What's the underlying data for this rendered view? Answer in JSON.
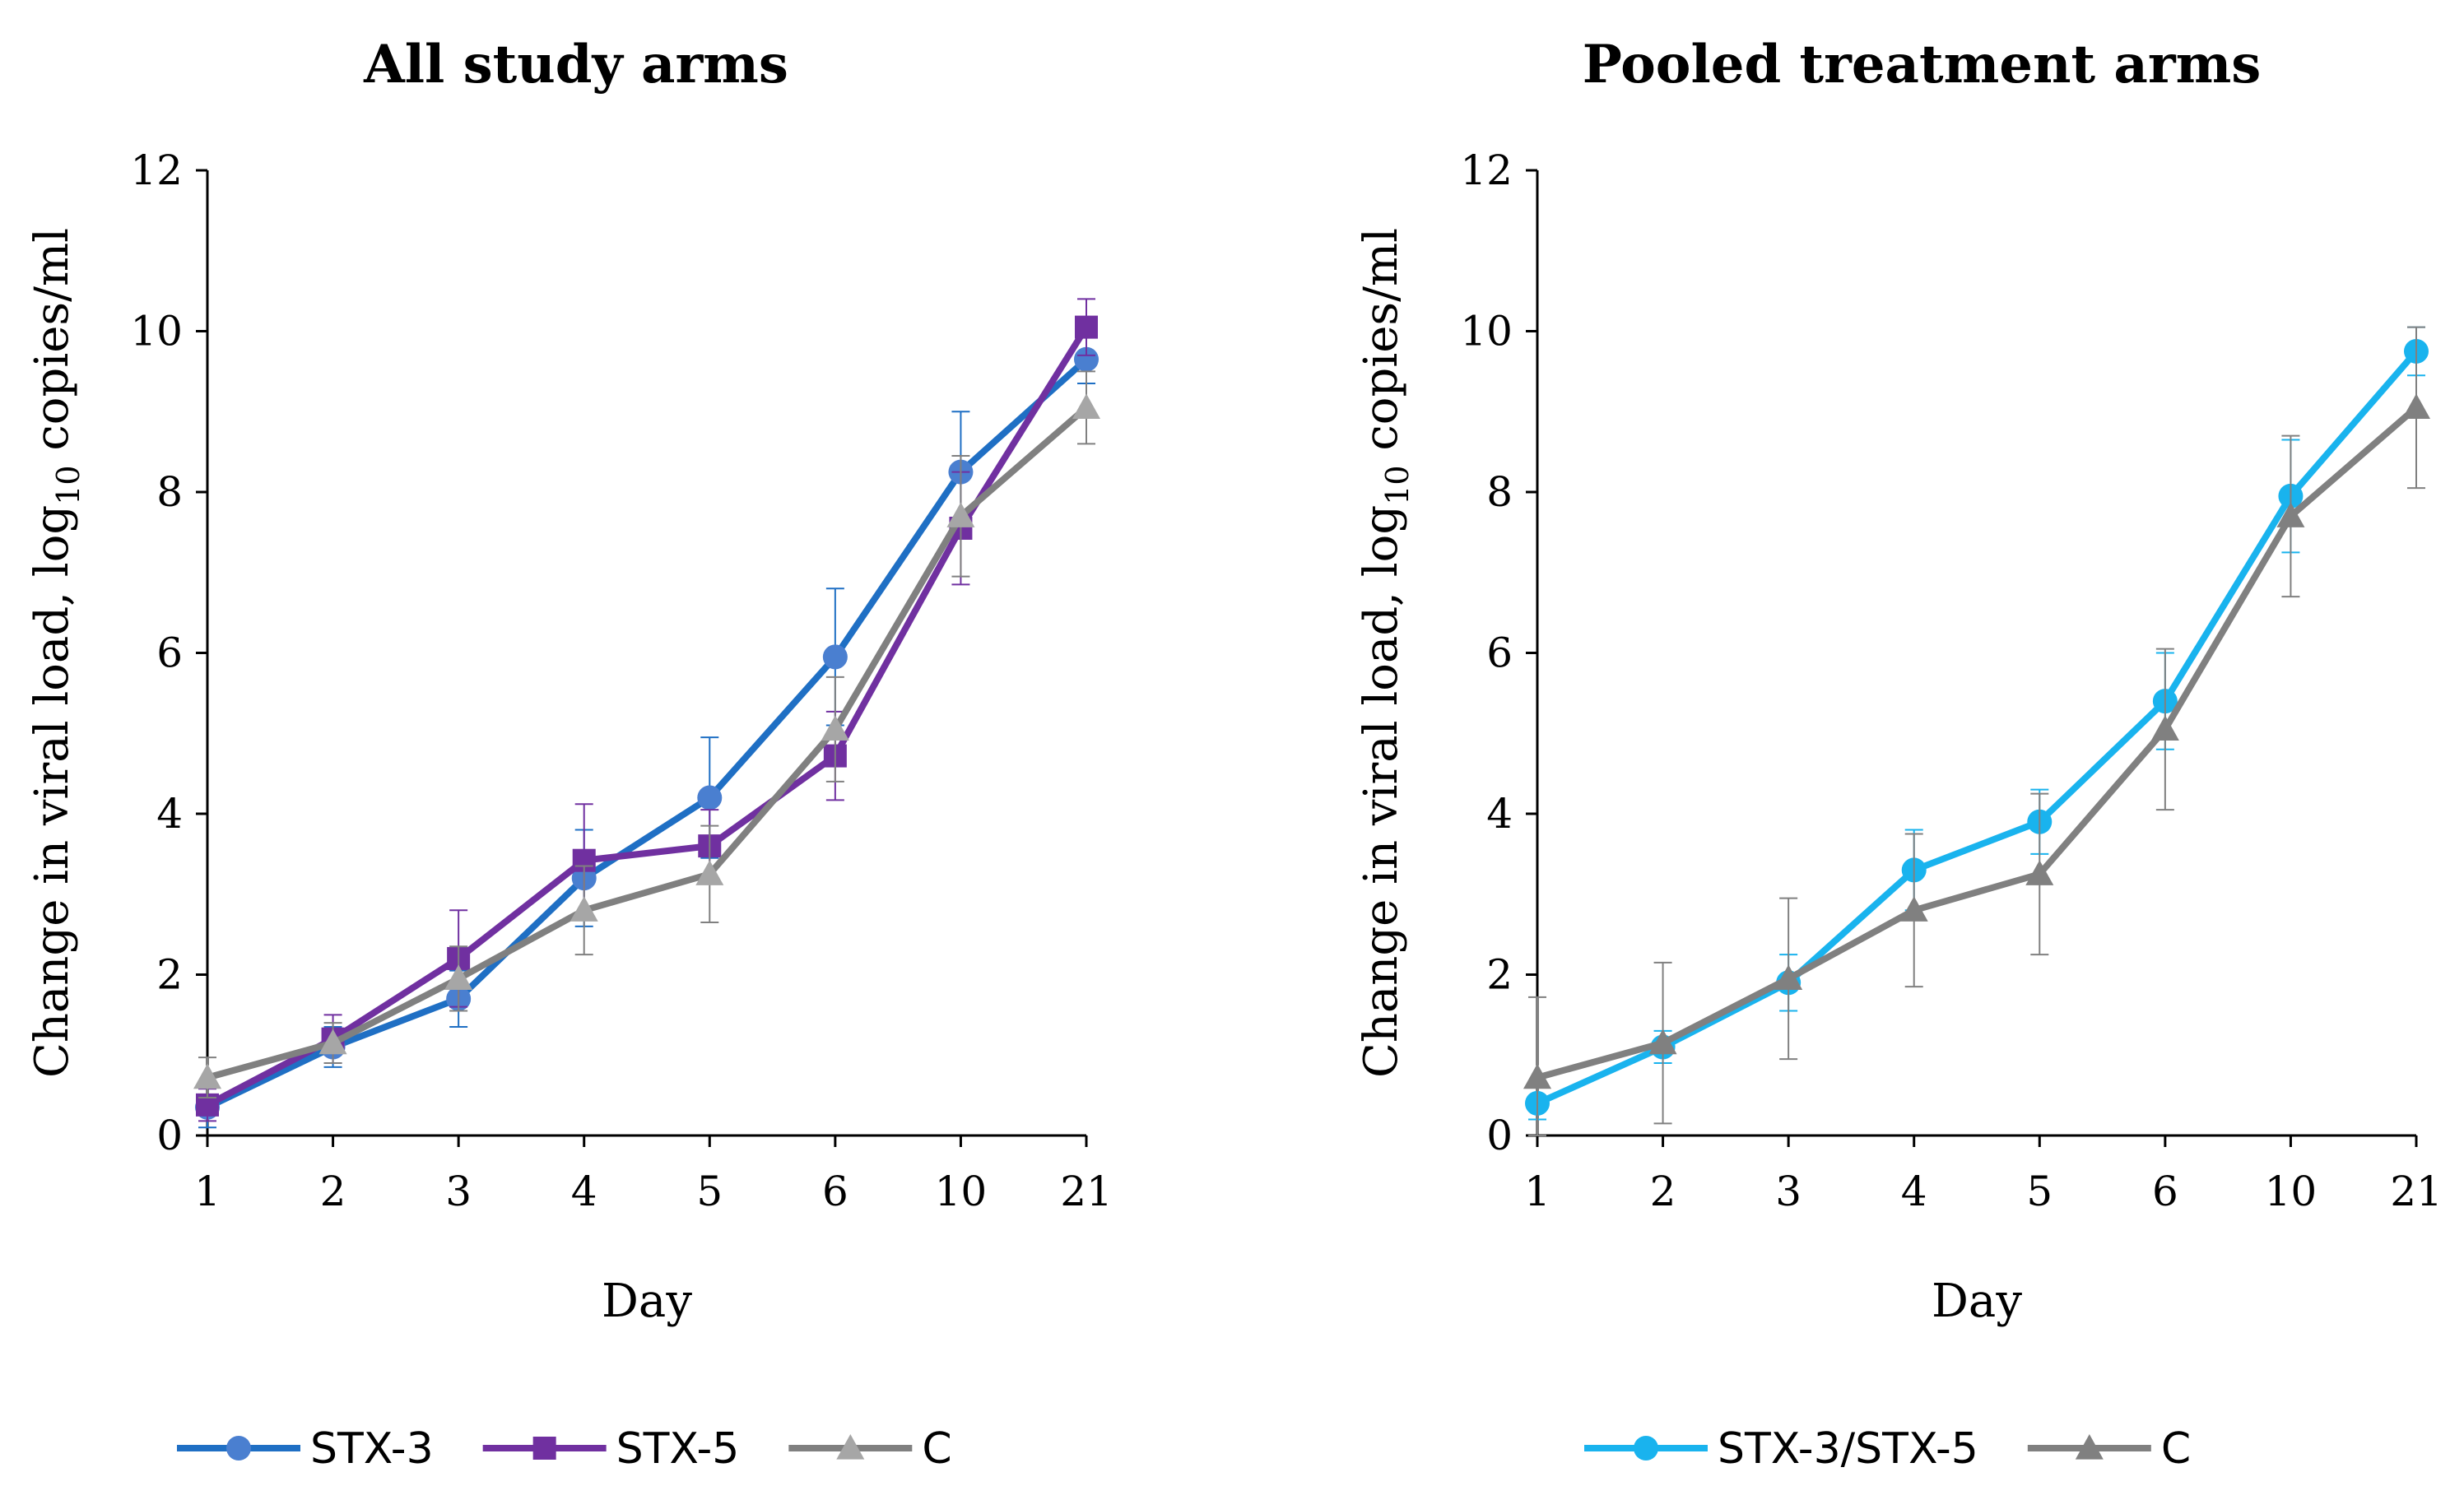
{
  "chart_data": [
    {
      "type": "line",
      "title": "All study arms",
      "xlabel": "Day",
      "ylabel": "Change in viral load, log10 copies/ml",
      "ylabel_pre": "Change in viral load, log",
      "ylabel_sub": "10",
      "ylabel_post": " copies/ml",
      "categories": [
        "1",
        "2",
        "3",
        "4",
        "5",
        "6",
        "10",
        "21"
      ],
      "ylim": [
        0,
        12
      ],
      "yticks": [
        "0",
        "2",
        "4",
        "6",
        "8",
        "10",
        "12"
      ],
      "grid": false,
      "legend_position": "bottom",
      "series": [
        {
          "name": "STX-3",
          "color": "#1f6fc4",
          "marker_color": "#4a7fd0",
          "marker": "circle",
          "values": [
            0.35,
            1.1,
            1.7,
            3.2,
            4.2,
            5.95,
            8.25,
            9.65
          ],
          "errors": [
            0.25,
            0.25,
            0.35,
            0.6,
            0.75,
            0.85,
            0.75,
            0.3
          ]
        },
        {
          "name": "STX-5",
          "color": "#7030a0",
          "marker_color": "#7030a0",
          "marker": "square",
          "values": [
            0.38,
            1.2,
            2.2,
            3.42,
            3.6,
            4.72,
            7.55,
            10.05
          ],
          "errors": [
            0.2,
            0.3,
            0.6,
            0.7,
            0.45,
            0.55,
            0.7,
            0.35
          ]
        },
        {
          "name": "C",
          "color": "#808080",
          "marker_color": "#a6a6a6",
          "marker": "triangle",
          "values": [
            0.72,
            1.15,
            1.95,
            2.8,
            3.25,
            5.05,
            7.7,
            9.05
          ],
          "errors": [
            0.25,
            0.25,
            0.4,
            0.55,
            0.6,
            0.65,
            0.75,
            0.45
          ]
        }
      ]
    },
    {
      "type": "line",
      "title": "Pooled treatment arms",
      "xlabel": "Day",
      "ylabel": "Change in viral load, log10 copies/ml",
      "ylabel_pre": "Change in viral load, log",
      "ylabel_sub": "10",
      "ylabel_post": " copies/ml",
      "categories": [
        "1",
        "2",
        "3",
        "4",
        "5",
        "6",
        "10",
        "21"
      ],
      "ylim": [
        0,
        12
      ],
      "yticks": [
        "0",
        "2",
        "4",
        "6",
        "8",
        "10",
        "12"
      ],
      "grid": false,
      "legend_position": "bottom",
      "series": [
        {
          "name": "STX-3/STX-5",
          "color": "#19b3ee",
          "marker_color": "#19b3ee",
          "marker": "circle",
          "values": [
            0.4,
            1.1,
            1.9,
            3.3,
            3.9,
            5.4,
            7.95,
            9.75
          ],
          "errors": [
            0.2,
            0.2,
            0.35,
            0.5,
            0.4,
            0.6,
            0.7,
            0.3
          ]
        },
        {
          "name": "C",
          "color": "#808080",
          "marker_color": "#808080",
          "marker": "triangle",
          "values": [
            0.72,
            1.15,
            1.95,
            2.8,
            3.25,
            5.05,
            7.7,
            9.05
          ],
          "errors": [
            1.0,
            1.0,
            1.0,
            0.95,
            1.0,
            1.0,
            1.0,
            1.0
          ]
        }
      ]
    }
  ]
}
